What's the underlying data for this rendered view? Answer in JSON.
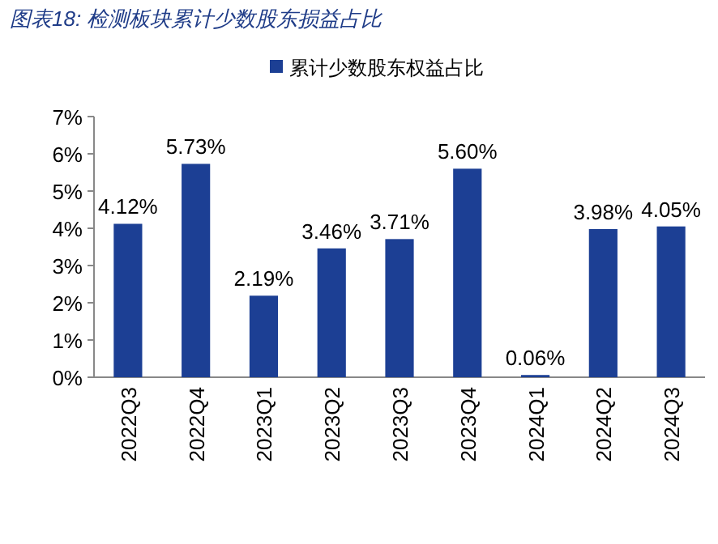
{
  "chart_data": {
    "type": "bar",
    "title": "图表18: 检测板块累计少数股东损益占比",
    "categories": [
      "2022Q3",
      "2022Q4",
      "2023Q1",
      "2023Q2",
      "2023Q3",
      "2023Q4",
      "2024Q1",
      "2024Q2",
      "2024Q3"
    ],
    "series": [
      {
        "name": "累计少数股东权益占比",
        "color": "#1c3f94",
        "values": [
          4.12,
          5.73,
          2.19,
          3.46,
          3.71,
          5.6,
          0.06,
          3.98,
          4.05
        ],
        "value_labels": [
          "4.12%",
          "5.73%",
          "2.19%",
          "3.46%",
          "3.71%",
          "5.60%",
          "0.06%",
          "3.98%",
          "4.05%"
        ]
      }
    ],
    "ylim": [
      0,
      7
    ],
    "yticks": [
      {
        "value": 0,
        "label": "0%"
      },
      {
        "value": 1,
        "label": "1%"
      },
      {
        "value": 2,
        "label": "2%"
      },
      {
        "value": 3,
        "label": "3%"
      },
      {
        "value": 4,
        "label": "4%"
      },
      {
        "value": 5,
        "label": "5%"
      },
      {
        "value": 6,
        "label": "6%"
      },
      {
        "value": 7,
        "label": "7%"
      }
    ],
    "grid": false,
    "legend": "top"
  }
}
